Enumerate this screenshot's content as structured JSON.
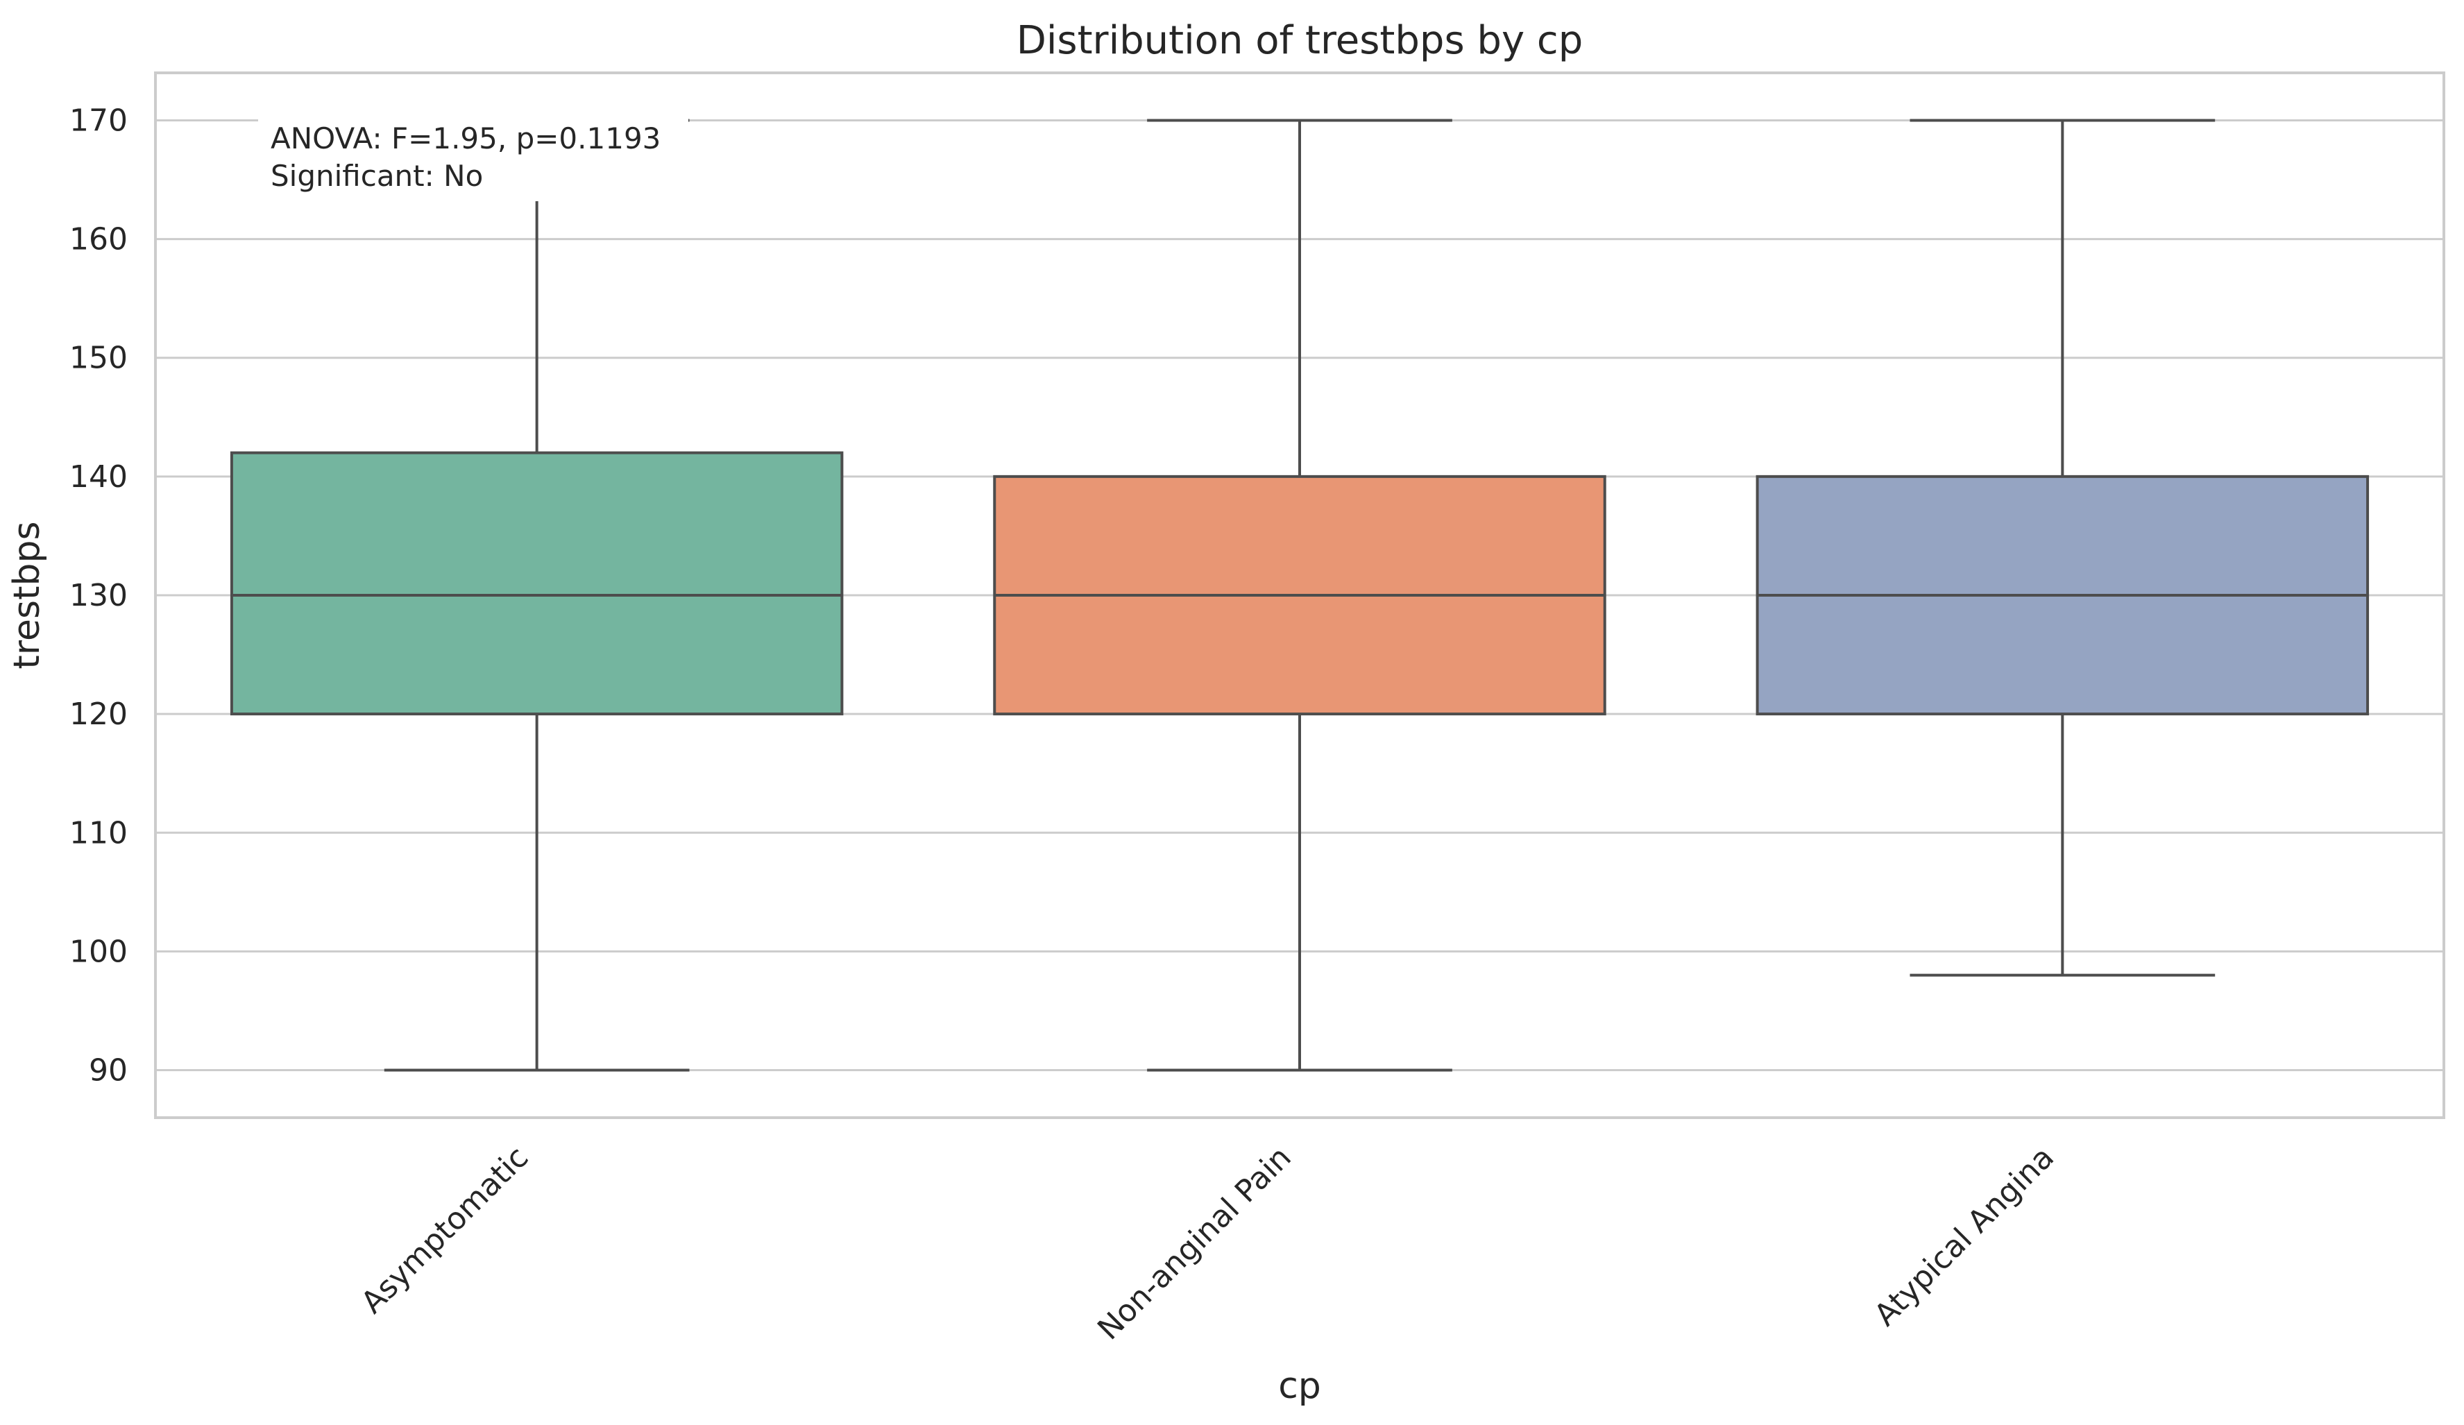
{
  "chart_data": {
    "type": "box",
    "title": "Distribution of trestbps by cp",
    "xlabel": "cp",
    "ylabel": "trestbps",
    "ylim": [
      86,
      174
    ],
    "yticks": [
      90,
      100,
      110,
      120,
      130,
      140,
      150,
      160,
      170
    ],
    "grid": true,
    "categories": [
      "Asymptomatic",
      "Non-anginal Pain",
      "Atypical Angina"
    ],
    "boxes": [
      {
        "category": "Asymptomatic",
        "whisker_low": 90,
        "q1": 120,
        "median": 130,
        "q3": 142,
        "whisker_high": 170,
        "color": "#74b59f"
      },
      {
        "category": "Non-anginal Pain",
        "whisker_low": 90,
        "q1": 120,
        "median": 130,
        "q3": 140,
        "whisker_high": 170,
        "color": "#e89674"
      },
      {
        "category": "Atypical Angina",
        "whisker_low": 98,
        "q1": 120,
        "median": 130,
        "q3": 140,
        "whisker_high": 170,
        "color": "#95a4c2"
      }
    ],
    "annotation": {
      "line1": "ANOVA: F=1.95, p=0.1193",
      "line2": "Significant: No"
    }
  }
}
